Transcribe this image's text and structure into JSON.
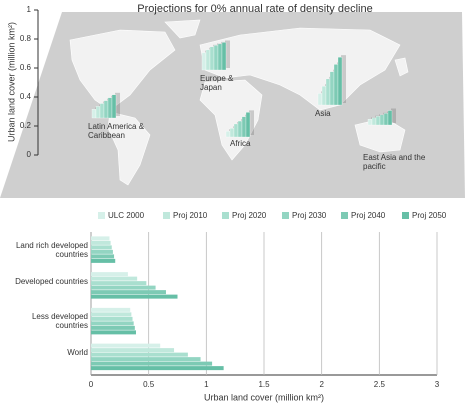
{
  "chart_data": [
    {
      "type": "map-bar",
      "title": "Projections for 0% annual rate of density decline",
      "ylabel": "Urban land cover (million km²)",
      "ylim": [
        0,
        1
      ],
      "yticks": [
        0,
        0.2,
        0.4,
        0.6,
        0.8,
        1
      ],
      "categories": [
        "Latin America & Caribbean",
        "Europe & Japan",
        "Asia",
        "Africa",
        "East Asia and the pacific"
      ],
      "series": [
        {
          "color": "#d6f0e9",
          "values": [
            0.06,
            0.12,
            0.08,
            0.04,
            0.04
          ]
        },
        {
          "color": "#c0e8dc",
          "values": [
            0.08,
            0.14,
            0.13,
            0.06,
            0.05
          ]
        },
        {
          "color": "#a9dfcf",
          "values": [
            0.1,
            0.16,
            0.18,
            0.09,
            0.06
          ]
        },
        {
          "color": "#93d5c2",
          "values": [
            0.12,
            0.17,
            0.23,
            0.11,
            0.07
          ]
        },
        {
          "color": "#7dcab4",
          "values": [
            0.14,
            0.18,
            0.28,
            0.14,
            0.08
          ]
        },
        {
          "color": "#66bfa6",
          "values": [
            0.16,
            0.19,
            0.33,
            0.17,
            0.1
          ]
        }
      ]
    },
    {
      "type": "hbar",
      "xlabel": "Urban land cover (million km²)",
      "xlim": [
        0,
        3
      ],
      "xticks": [
        0,
        0.5,
        1,
        1.5,
        2,
        2.5,
        3
      ],
      "grid": true,
      "categories": [
        "Land rich developed countries",
        "Developed countries",
        "Less developed countries",
        "World"
      ],
      "series": [
        {
          "name": "ULC 2000",
          "color": "#d6f0e9",
          "values": [
            0.16,
            0.32,
            0.34,
            0.6
          ]
        },
        {
          "name": "Proj 2010",
          "color": "#c0e8dc",
          "values": [
            0.17,
            0.4,
            0.35,
            0.72
          ]
        },
        {
          "name": "Proj 2020",
          "color": "#a9dfcf",
          "values": [
            0.18,
            0.48,
            0.36,
            0.84
          ]
        },
        {
          "name": "Proj 2030",
          "color": "#93d5c2",
          "values": [
            0.19,
            0.56,
            0.37,
            0.95
          ]
        },
        {
          "name": "Proj 2040",
          "color": "#7dcab4",
          "values": [
            0.2,
            0.65,
            0.38,
            1.05
          ]
        },
        {
          "name": "Proj 2050",
          "color": "#66bfa6",
          "values": [
            0.21,
            0.75,
            0.39,
            1.15
          ]
        }
      ]
    }
  ]
}
